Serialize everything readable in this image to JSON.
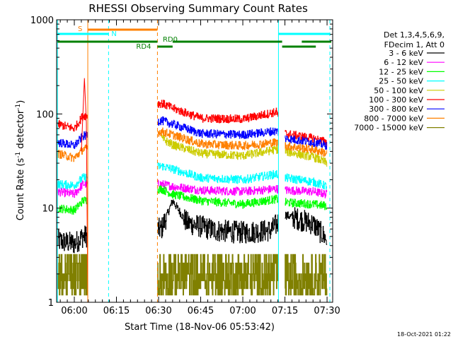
{
  "chart_data": {
    "type": "line",
    "title": "RHESSI Observing Summary Count Rates",
    "xlabel": "Start Time (18-Nov-06 05:53:42)",
    "ylabel_main": "Count Rate (s",
    "ylabel_sup": "-1",
    "ylabel_rest": " detector",
    "ylabel_sup2": "-1",
    "ylabel_end": ")",
    "y_scale": "log",
    "ylim": [
      1,
      1000
    ],
    "xlim_minutes": [
      353.7,
      452.0
    ],
    "x_ticks": [
      {
        "label": "06:00",
        "minute": 360
      },
      {
        "label": "06:15",
        "minute": 375
      },
      {
        "label": "06:30",
        "minute": 390
      },
      {
        "label": "06:45",
        "minute": 405
      },
      {
        "label": "07:00",
        "minute": 420
      },
      {
        "label": "07:15",
        "minute": 435
      },
      {
        "label": "07:30",
        "minute": 450
      }
    ],
    "y_ticks": [
      {
        "label": "1",
        "value": 1
      },
      {
        "label": "10",
        "value": 10
      },
      {
        "label": "100",
        "value": 100
      },
      {
        "label": "1000",
        "value": 1000
      }
    ],
    "legend_header": [
      "Det 1,3,4,5,6,9,",
      "FDecim 1, Att 0"
    ],
    "legend": [
      {
        "label": "3 - 6 keV",
        "color": "#000000"
      },
      {
        "label": "6 - 12 keV",
        "color": "#ff00ff"
      },
      {
        "label": "12 - 25 keV",
        "color": "#00ff00"
      },
      {
        "label": "25 - 50 keV",
        "color": "#00ffff"
      },
      {
        "label": "50 - 100 keV",
        "color": "#cccc00"
      },
      {
        "label": "100 - 300 keV",
        "color": "#ff0000"
      },
      {
        "label": "300 - 800 keV",
        "color": "#0000ff"
      },
      {
        "label": "800 - 7000 keV",
        "color": "#ff8000"
      },
      {
        "label": "7000 - 15000 keV",
        "color": "#808000"
      }
    ],
    "time_markers": [
      {
        "minute": 354.0,
        "color": "#00ffff",
        "style": "solid"
      },
      {
        "minute": 364.8,
        "color": "#ff8000",
        "style": "solid"
      },
      {
        "minute": 372.2,
        "color": "#00ffff",
        "style": "dashed"
      },
      {
        "minute": 389.6,
        "color": "#ff8000",
        "style": "dashed"
      },
      {
        "minute": 432.7,
        "color": "#00ffff",
        "style": "solid"
      },
      {
        "minute": 451.0,
        "color": "#00ffff",
        "style": "dashed"
      }
    ],
    "status_bars": [
      {
        "label": "S",
        "color": "#ff8000",
        "row": 1,
        "segments": [
          [
            364.8,
            389.6
          ]
        ]
      },
      {
        "label": "N",
        "color": "#00ffff",
        "row": 2,
        "segments": [
          [
            354.0,
            372.2
          ],
          [
            432.7,
            451.0
          ]
        ]
      },
      {
        "label": "RD0",
        "color": "#008000",
        "row": 3,
        "segments": [
          [
            354.0,
            389.6
          ],
          [
            395.0,
            434.0
          ],
          [
            441.0,
            451.5
          ]
        ]
      },
      {
        "label": "RD4",
        "color": "#008000",
        "row": 4,
        "segments": [
          [
            389.6,
            395.0
          ],
          [
            434.0,
            446.0
          ]
        ]
      }
    ],
    "gaps_minutes": [
      [
        364.8,
        389.6
      ],
      [
        432.7,
        435.0
      ]
    ],
    "series": [
      {
        "name": "3 - 6 keV",
        "color": "#000000",
        "values": [
          [
            354,
            4.5
          ],
          [
            360,
            4.2
          ],
          [
            363,
            5.0
          ],
          [
            391,
            6.0
          ],
          [
            395,
            12.0
          ],
          [
            400,
            7.0
          ],
          [
            410,
            5.8
          ],
          [
            420,
            5.5
          ],
          [
            430,
            5.8
          ],
          [
            435,
            8.5
          ],
          [
            445,
            6.8
          ],
          [
            450,
            4.6
          ]
        ]
      },
      {
        "name": "6 - 12 keV",
        "color": "#ff00ff",
        "values": [
          [
            354,
            15.0
          ],
          [
            360,
            14.0
          ],
          [
            363,
            18.0
          ],
          [
            391,
            18.0
          ],
          [
            395,
            17.0
          ],
          [
            405,
            15.5
          ],
          [
            420,
            15.0
          ],
          [
            432,
            16.0
          ],
          [
            435,
            15.5
          ],
          [
            445,
            15.0
          ],
          [
            450,
            14.0
          ]
        ]
      },
      {
        "name": "12 - 25 keV",
        "color": "#00ff00",
        "values": [
          [
            354,
            10.0
          ],
          [
            360,
            9.5
          ],
          [
            363,
            12.0
          ],
          [
            391,
            16.0
          ],
          [
            395,
            14.0
          ],
          [
            405,
            12.0
          ],
          [
            420,
            11.0
          ],
          [
            432,
            12.5
          ],
          [
            435,
            11.5
          ],
          [
            445,
            11.0
          ],
          [
            450,
            10.5
          ]
        ]
      },
      {
        "name": "25 - 50 keV",
        "color": "#00ffff",
        "values": [
          [
            354,
            18.0
          ],
          [
            360,
            17.5
          ],
          [
            363,
            21.0
          ],
          [
            391,
            28.0
          ],
          [
            395,
            26.0
          ],
          [
            405,
            21.0
          ],
          [
            420,
            20.0
          ],
          [
            432,
            23.0
          ],
          [
            435,
            21.0
          ],
          [
            445,
            19.0
          ],
          [
            450,
            17.0
          ]
        ]
      },
      {
        "name": "50 - 100 keV",
        "color": "#cccc00",
        "values": [
          [
            391,
            55.0
          ],
          [
            395,
            47.0
          ],
          [
            405,
            38.0
          ],
          [
            420,
            36.0
          ],
          [
            432,
            42.0
          ],
          [
            435,
            40.0
          ],
          [
            445,
            35.0
          ],
          [
            450,
            30.0
          ]
        ]
      },
      {
        "name": "100 - 300 keV",
        "color": "#ff0000",
        "values": [
          [
            354,
            78.0
          ],
          [
            360,
            70.0
          ],
          [
            363,
            95.0
          ],
          [
            391,
            130.0
          ],
          [
            395,
            115.0
          ],
          [
            405,
            90.0
          ],
          [
            420,
            88.0
          ],
          [
            432,
            105.0
          ],
          [
            435,
            62.0
          ],
          [
            445,
            55.0
          ],
          [
            450,
            50.0
          ]
        ]
      },
      {
        "name": "300 - 800 keV",
        "color": "#0000ff",
        "values": [
          [
            354,
            50.0
          ],
          [
            360,
            46.0
          ],
          [
            363,
            58.0
          ],
          [
            391,
            85.0
          ],
          [
            395,
            78.0
          ],
          [
            405,
            62.0
          ],
          [
            420,
            60.0
          ],
          [
            432,
            66.0
          ],
          [
            435,
            55.0
          ],
          [
            445,
            50.0
          ],
          [
            450,
            46.0
          ]
        ]
      },
      {
        "name": "800 - 7000 keV",
        "color": "#ff8000",
        "values": [
          [
            354,
            38.0
          ],
          [
            360,
            34.0
          ],
          [
            363,
            42.0
          ],
          [
            391,
            65.0
          ],
          [
            395,
            60.0
          ],
          [
            405,
            48.0
          ],
          [
            420,
            46.0
          ],
          [
            432,
            50.0
          ],
          [
            435,
            46.0
          ],
          [
            445,
            42.0
          ],
          [
            450,
            38.0
          ]
        ]
      },
      {
        "name": "7000 - 15000 keV",
        "color": "#808000",
        "values": [
          [
            354,
            2.0
          ],
          [
            360,
            2.0
          ],
          [
            363,
            2.0
          ],
          [
            391,
            3.5
          ],
          [
            395,
            2.0
          ],
          [
            405,
            1.8
          ],
          [
            420,
            1.6
          ],
          [
            432,
            1.8
          ],
          [
            435,
            2.0
          ],
          [
            445,
            2.0
          ],
          [
            450,
            2.0
          ]
        ]
      }
    ]
  },
  "footer": {
    "timestamp": "18-Oct-2021 01:22"
  }
}
